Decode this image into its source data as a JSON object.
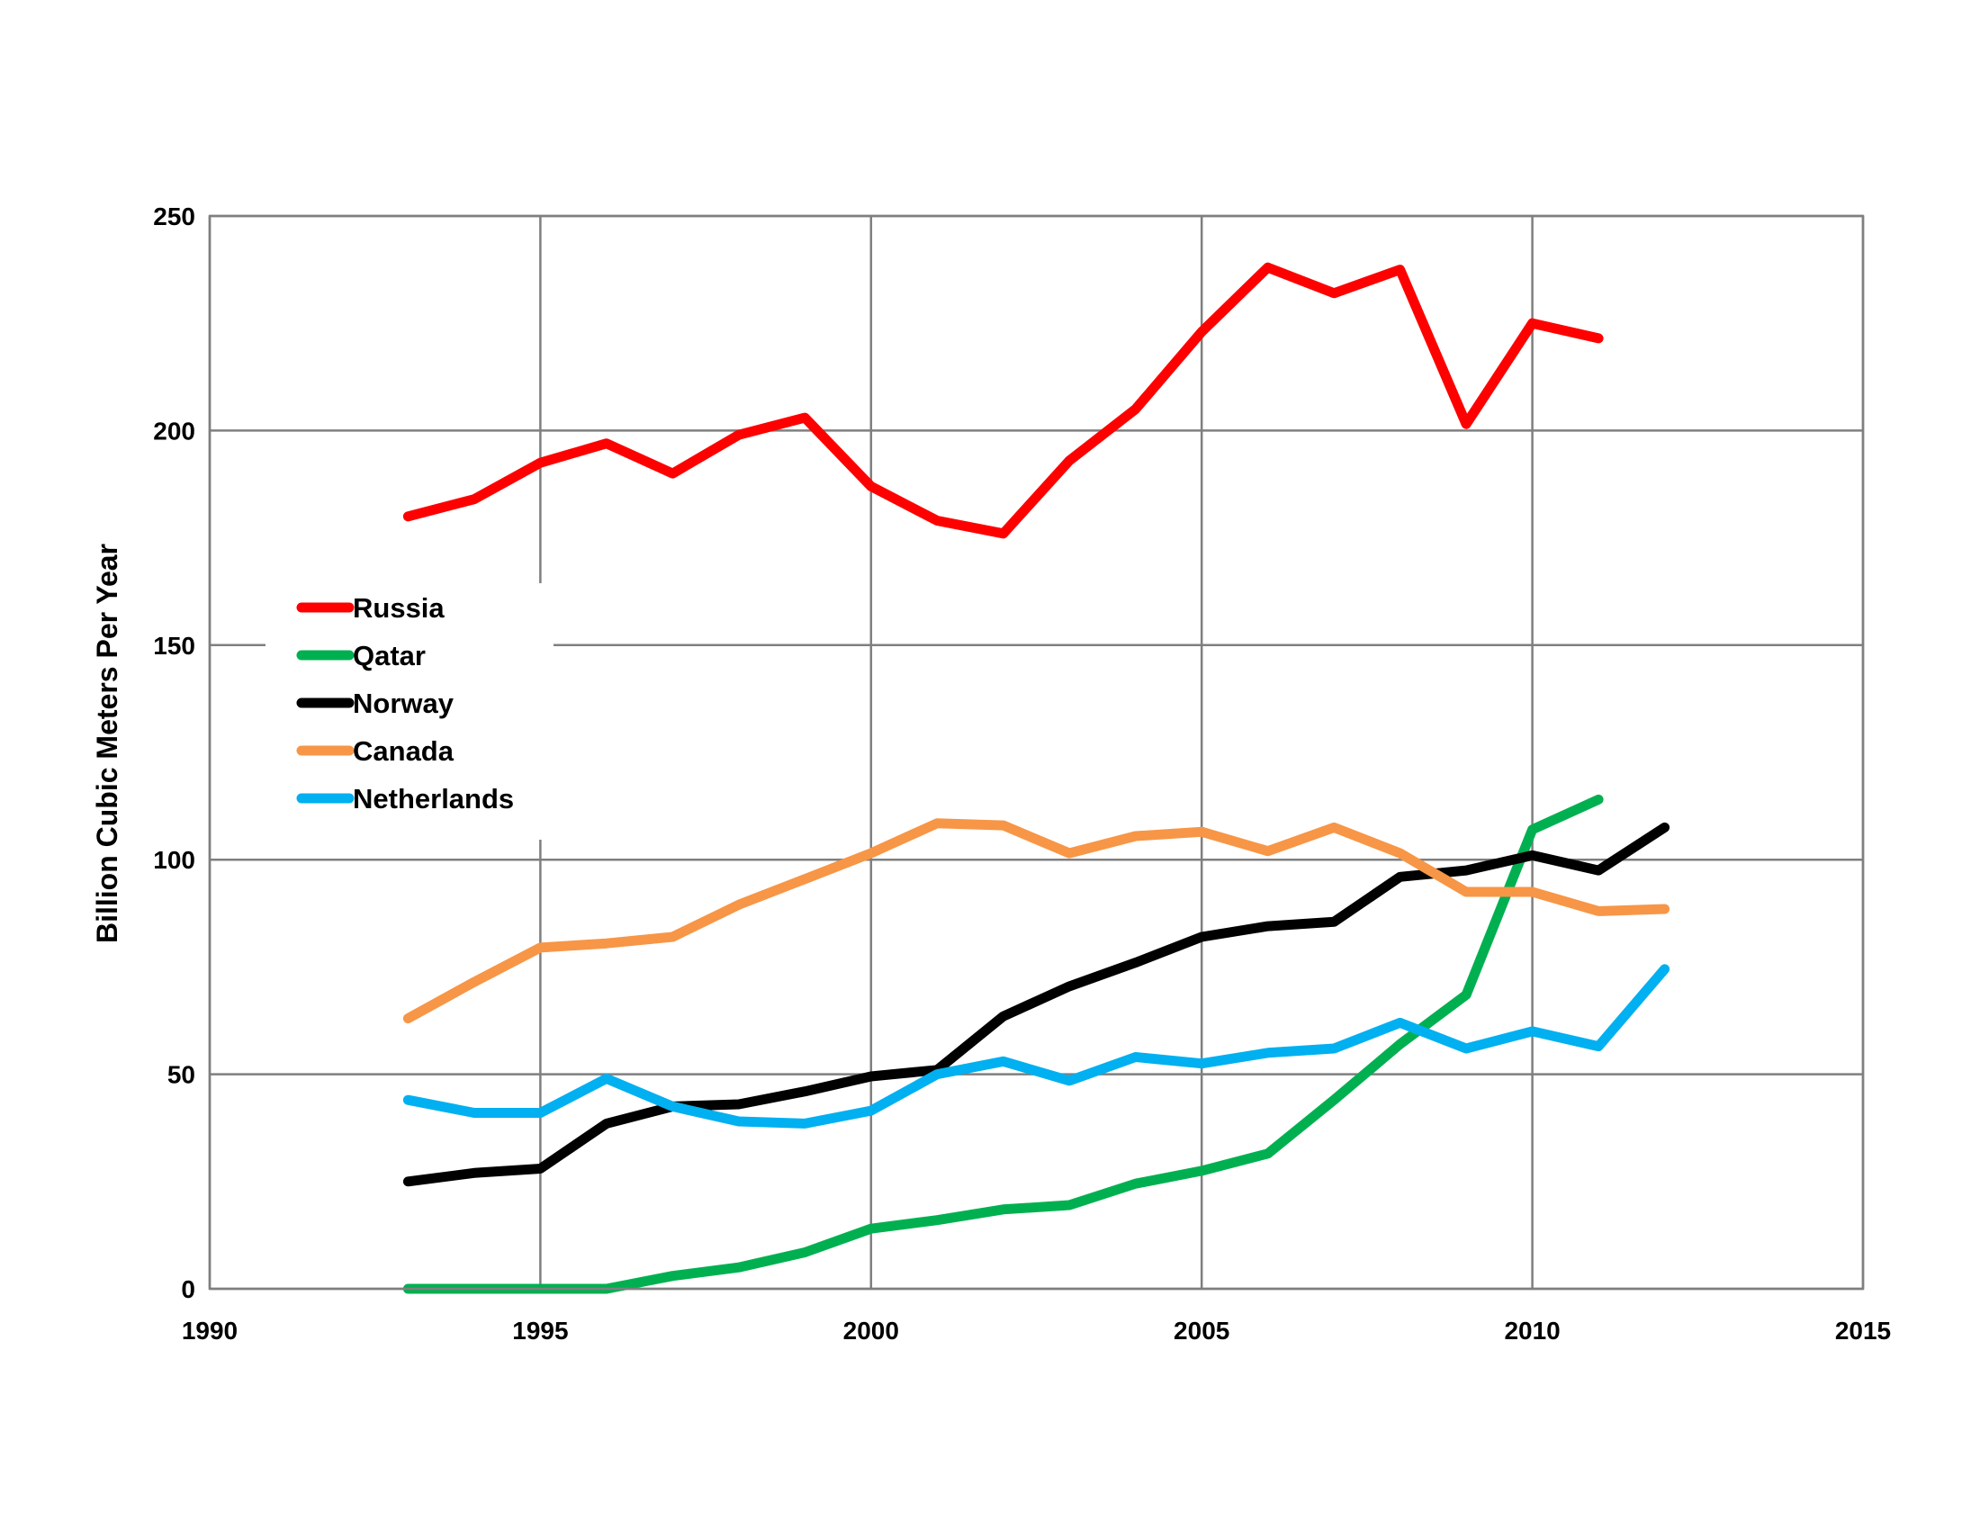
{
  "chart_data": {
    "type": "line",
    "title": "",
    "xlabel": "",
    "ylabel": "Billion Cubic Meters Per Year",
    "xlim": [
      1990,
      2015
    ],
    "ylim": [
      0,
      250
    ],
    "xticks": [
      1990,
      1995,
      2000,
      2005,
      2010,
      2015
    ],
    "yticks": [
      0,
      50,
      100,
      150,
      200,
      250
    ],
    "xtick_labels": [
      "1990",
      "1995",
      "2000",
      "2005",
      "2010",
      "2015"
    ],
    "ytick_labels": [
      "0",
      "50",
      "100",
      "150",
      "200",
      "250"
    ],
    "grid": true,
    "legend_position": "upper-left inside plot",
    "series": [
      {
        "name": "Russia",
        "color": "#ff0000",
        "x": [
          1993,
          1994,
          1995,
          1996,
          1997,
          1998,
          1999,
          2000,
          2001,
          2002,
          2003,
          2004,
          2005,
          2006,
          2007,
          2008,
          2009,
          2010,
          2011
        ],
        "y": [
          180,
          184,
          192.5,
          197,
          190,
          199,
          203,
          187,
          179,
          176,
          193,
          205,
          223,
          238,
          232,
          237.5,
          201.5,
          225,
          221.5
        ]
      },
      {
        "name": "Qatar",
        "color": "#00b050",
        "x": [
          1993,
          1994,
          1995,
          1996,
          1997,
          1998,
          1999,
          2000,
          2001,
          2002,
          2003,
          2004,
          2005,
          2006,
          2007,
          2008,
          2009,
          2010,
          2011
        ],
        "y": [
          0,
          0,
          0,
          0,
          3,
          5,
          8.5,
          14,
          16,
          18.5,
          19.5,
          24.5,
          27.5,
          31.5,
          44,
          57,
          68.5,
          107,
          114
        ]
      },
      {
        "name": "Norway",
        "color": "#000000",
        "x": [
          1993,
          1994,
          1995,
          1996,
          1997,
          1998,
          1999,
          2000,
          2001,
          2002,
          2003,
          2004,
          2005,
          2006,
          2007,
          2008,
          2009,
          2010,
          2011,
          2012
        ],
        "y": [
          25,
          27,
          28,
          38.5,
          42.5,
          43,
          46,
          49.5,
          51,
          63.5,
          70.5,
          76,
          82,
          84.5,
          85.5,
          96,
          97.5,
          101,
          97.5,
          107.5
        ]
      },
      {
        "name": "Canada",
        "color": "#f79646",
        "x": [
          1993,
          1994,
          1995,
          1996,
          1997,
          1998,
          1999,
          2000,
          2001,
          2002,
          2003,
          2004,
          2005,
          2006,
          2007,
          2008,
          2009,
          2010,
          2011,
          2012
        ],
        "y": [
          63,
          71.5,
          79.5,
          80.5,
          82,
          89.5,
          95.5,
          101.5,
          108.5,
          108,
          101.5,
          105.5,
          106.5,
          102,
          107.5,
          101.5,
          92.5,
          92.5,
          88,
          88.5
        ]
      },
      {
        "name": "Netherlands",
        "color": "#00b0f0",
        "x": [
          1993,
          1994,
          1995,
          1996,
          1997,
          1998,
          1999,
          2000,
          2001,
          2002,
          2003,
          2004,
          2005,
          2006,
          2007,
          2008,
          2009,
          2010,
          2011,
          2012
        ],
        "y": [
          44,
          41,
          41,
          49,
          42.5,
          39,
          38.5,
          41.5,
          50,
          53,
          48.5,
          54,
          52.5,
          55,
          56,
          62,
          56,
          60,
          56.5,
          74.5
        ]
      }
    ]
  }
}
